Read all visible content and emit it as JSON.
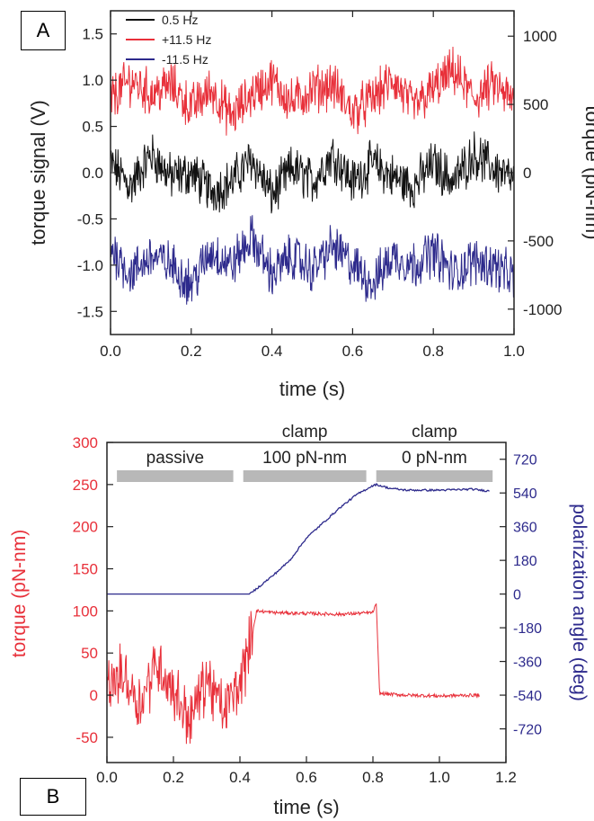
{
  "panels": {
    "a_label": "A",
    "b_label": "B"
  },
  "colors": {
    "black": "#111111",
    "red": "#e8303a",
    "blue": "#2d2a8c",
    "bar": "#b8b8b8",
    "axis": "#222222"
  },
  "chart_data": [
    {
      "type": "line",
      "title": "",
      "xlabel": "time (s)",
      "ylabel": "torque signal (V)",
      "y2label": "torque (pN-nm)",
      "xlim": [
        0.0,
        1.0
      ],
      "ylim": [
        -1.75,
        1.75
      ],
      "y2lim": [
        -1186,
        1186
      ],
      "xticks": [
        "0.0",
        "0.2",
        "0.4",
        "0.6",
        "0.8",
        "1.0"
      ],
      "yticks": [
        "-1.5",
        "-1.0",
        "-0.5",
        "0.0",
        "0.5",
        "1.0",
        "1.5"
      ],
      "y2ticks": [
        "-1000",
        "-500",
        "0",
        "500",
        "1000"
      ],
      "legend_position": "top-left",
      "grid": false,
      "series": [
        {
          "name": "0.5 Hz",
          "color": "#111111",
          "x": [
            0.0,
            0.05,
            0.1,
            0.15,
            0.2,
            0.25,
            0.3,
            0.35,
            0.4,
            0.45,
            0.5,
            0.55,
            0.6,
            0.65,
            0.7,
            0.75,
            0.8,
            0.85,
            0.9,
            0.95,
            1.0
          ],
          "values": [
            0.1,
            -0.15,
            0.2,
            -0.05,
            0.0,
            -0.2,
            -0.1,
            0.15,
            -0.25,
            0.05,
            -0.1,
            0.2,
            -0.1,
            0.1,
            -0.05,
            -0.15,
            0.1,
            -0.1,
            0.2,
            0.05,
            -0.1
          ]
        },
        {
          "name": "+11.5 Hz",
          "color": "#e8303a",
          "x": [
            0.0,
            0.05,
            0.1,
            0.15,
            0.2,
            0.25,
            0.3,
            0.35,
            0.4,
            0.45,
            0.5,
            0.55,
            0.6,
            0.65,
            0.7,
            0.75,
            0.8,
            0.85,
            0.9,
            0.95,
            1.0
          ],
          "values": [
            0.8,
            1.0,
            0.85,
            0.95,
            0.7,
            0.9,
            0.6,
            0.85,
            1.0,
            0.75,
            0.9,
            0.95,
            0.65,
            0.8,
            1.0,
            0.7,
            0.9,
            1.1,
            0.8,
            0.95,
            0.75
          ]
        },
        {
          "name": "-11.5 Hz",
          "color": "#2d2a8c",
          "x": [
            0.0,
            0.05,
            0.1,
            0.15,
            0.2,
            0.25,
            0.3,
            0.35,
            0.4,
            0.45,
            0.5,
            0.55,
            0.6,
            0.65,
            0.7,
            0.75,
            0.8,
            0.85,
            0.9,
            0.95,
            1.0
          ],
          "values": [
            -0.8,
            -1.1,
            -0.9,
            -1.0,
            -1.2,
            -0.85,
            -1.0,
            -0.7,
            -1.1,
            -0.9,
            -1.05,
            -0.8,
            -1.0,
            -1.2,
            -0.9,
            -1.0,
            -0.85,
            -1.1,
            -0.95,
            -1.0,
            -1.15
          ]
        }
      ]
    },
    {
      "type": "line",
      "title": "",
      "xlabel": "time (s)",
      "ylabel": "torque (pN-nm)",
      "y2label": "polarization angle (deg)",
      "xlim": [
        0.0,
        1.2
      ],
      "ylim": [
        -80,
        300
      ],
      "y2lim": [
        -900,
        810
      ],
      "xticks": [
        "0.0",
        "0.2",
        "0.4",
        "0.6",
        "0.8",
        "1.0",
        "1.2"
      ],
      "yticks": [
        "-50",
        "0",
        "50",
        "100",
        "150",
        "200",
        "250",
        "300"
      ],
      "y2ticks": [
        "-720",
        "-540",
        "-360",
        "-180",
        "0",
        "180",
        "360",
        "540",
        "720"
      ],
      "grid": false,
      "annotations": [
        {
          "text": "passive",
          "x_start": 0.03,
          "x_end": 0.38
        },
        {
          "text": "clamp\n100 pN-nm",
          "x_start": 0.41,
          "x_end": 0.78
        },
        {
          "text": "clamp\n0 pN-nm",
          "x_start": 0.81,
          "x_end": 1.16
        }
      ],
      "series": [
        {
          "name": "torque",
          "color": "#e8303a",
          "axis": "left",
          "x": [
            0.0,
            0.05,
            0.1,
            0.15,
            0.2,
            0.25,
            0.3,
            0.35,
            0.4,
            0.43,
            0.45,
            0.5,
            0.6,
            0.7,
            0.8,
            0.81,
            0.82,
            0.9,
            1.0,
            1.1,
            1.12
          ],
          "values": [
            10,
            25,
            -10,
            40,
            5,
            -30,
            20,
            -20,
            15,
            60,
            100,
            98,
            97,
            96,
            98,
            110,
            2,
            0,
            -1,
            0,
            0
          ]
        },
        {
          "name": "polarization angle",
          "color": "#2d2a8c",
          "axis": "right",
          "x": [
            0.0,
            0.1,
            0.2,
            0.3,
            0.4,
            0.43,
            0.5,
            0.55,
            0.6,
            0.65,
            0.7,
            0.75,
            0.8,
            0.81,
            0.85,
            0.9,
            1.0,
            1.1,
            1.15
          ],
          "values": [
            0,
            0,
            0,
            0,
            0,
            0,
            100,
            180,
            300,
            380,
            460,
            530,
            580,
            585,
            565,
            555,
            555,
            560,
            550
          ]
        }
      ]
    }
  ]
}
